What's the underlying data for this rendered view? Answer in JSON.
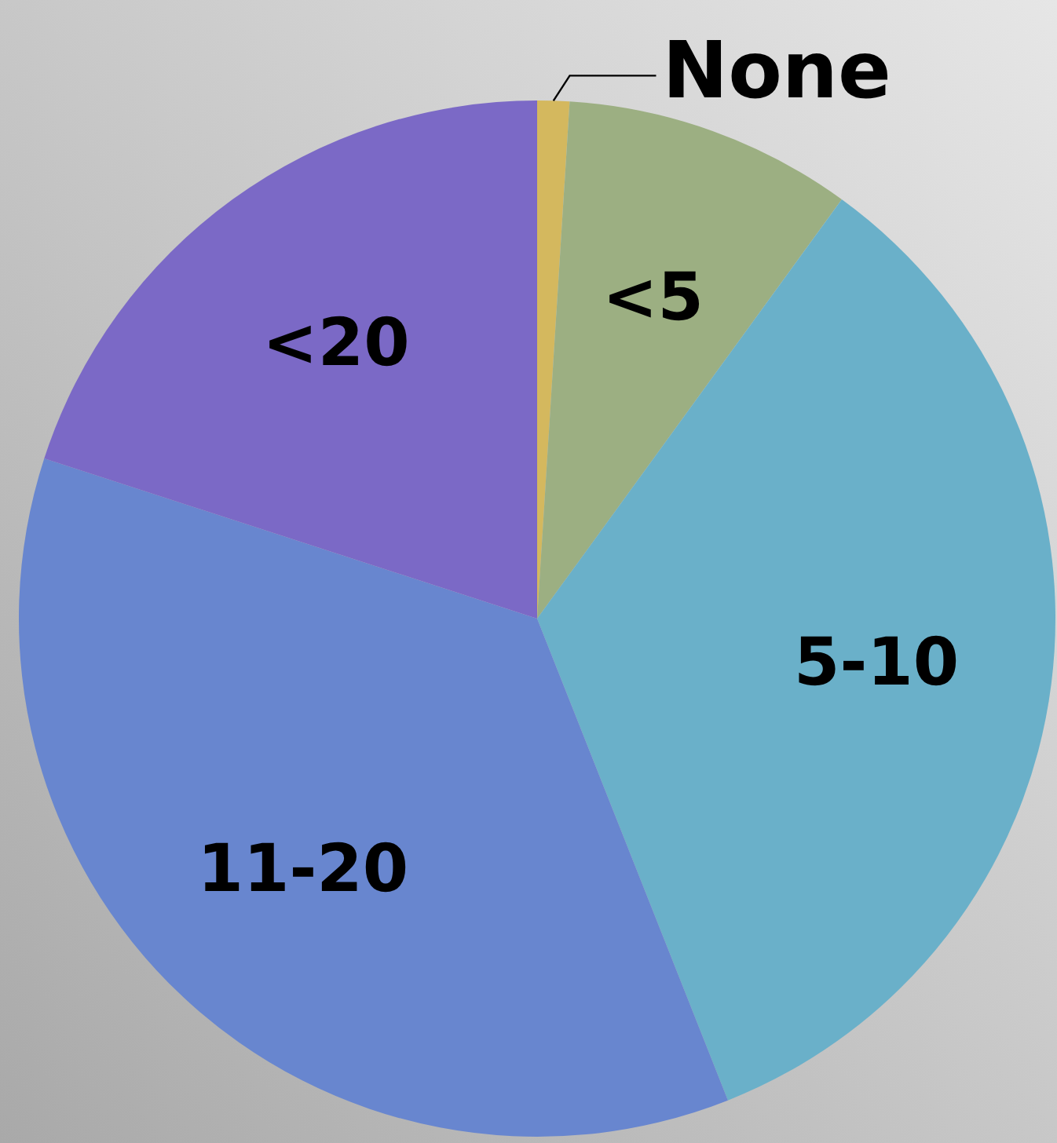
{
  "chart_data": {
    "type": "pie",
    "categories": [
      "None",
      "<5",
      "5-10",
      "11-20",
      "<20"
    ],
    "values": [
      1,
      9,
      34,
      36,
      20
    ],
    "colors": [
      "#d4b85e",
      "#9caf82",
      "#6ab0c9",
      "#6886cf",
      "#7b69c6"
    ]
  }
}
